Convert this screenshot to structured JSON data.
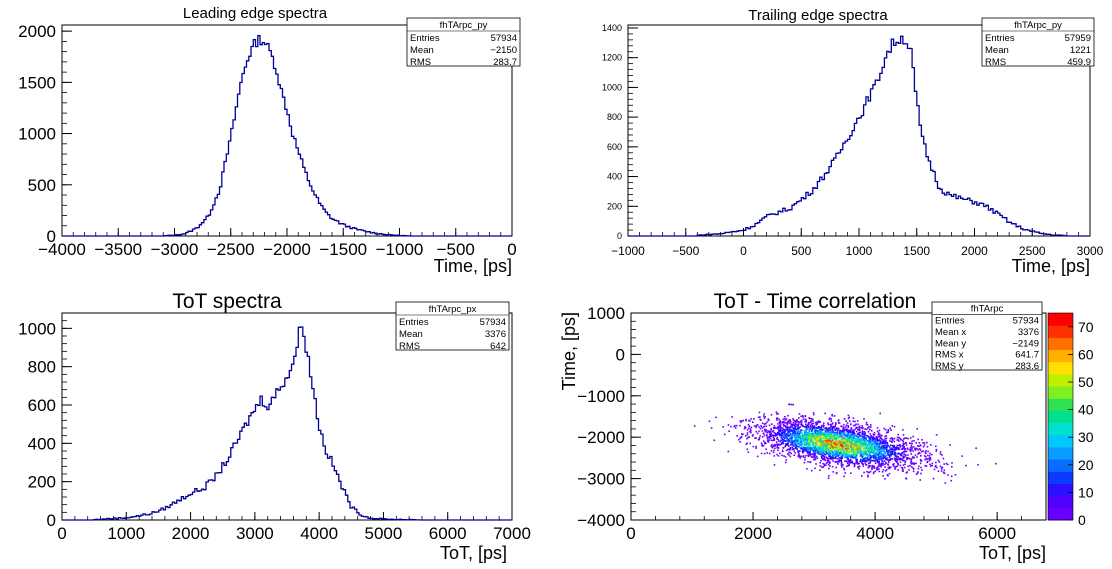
{
  "chart_data": [
    {
      "type": "histogram",
      "title": "Leading edge spectra",
      "xlabel": "Time, [ps]",
      "ylabel": "",
      "xlim": [
        -4000,
        0
      ],
      "ylim": [
        0,
        2060
      ],
      "xticks": [
        -4000,
        -3500,
        -3000,
        -2500,
        -2000,
        -1500,
        -1000,
        -500,
        0
      ],
      "yticks": [
        0,
        500,
        1000,
        1500,
        2000
      ],
      "color": "#000099",
      "series": [
        {
          "x": [
            -3100,
            -3000,
            -2900,
            -2800,
            -2700,
            -2600,
            -2500,
            -2450,
            -2400,
            -2350,
            -2300,
            -2250,
            -2200,
            -2150,
            -2100,
            -2050,
            -2000,
            -1950,
            -1900,
            -1850,
            -1800,
            -1750,
            -1700,
            -1650,
            -1600,
            -1500,
            -1400,
            -1300,
            -1200,
            -1100,
            -1000,
            -900
          ],
          "y": [
            2,
            8,
            25,
            80,
            190,
            450,
            960,
            1260,
            1550,
            1730,
            1860,
            1920,
            1900,
            1800,
            1650,
            1420,
            1230,
            1000,
            830,
            660,
            520,
            400,
            300,
            225,
            170,
            110,
            70,
            45,
            25,
            12,
            5,
            0
          ]
        }
      ],
      "stats": {
        "name": "fhTArpc_py",
        "rows": [
          [
            "Entries",
            "57934"
          ],
          [
            "Mean",
            "−2150"
          ],
          [
            "RMS",
            "283.7"
          ]
        ]
      }
    },
    {
      "type": "histogram",
      "title": "Trailing edge spectra",
      "xlabel": "Time, [ps]",
      "ylabel": "",
      "xlim": [
        -1000,
        3000
      ],
      "ylim": [
        0,
        1420
      ],
      "xticks": [
        -1000,
        -500,
        0,
        500,
        1000,
        1500,
        2000,
        2500,
        3000
      ],
      "yticks": [
        0,
        200,
        400,
        600,
        800,
        1000,
        1200,
        1400
      ],
      "color": "#000099",
      "series": [
        {
          "x": [
            -400,
            -200,
            0,
            100,
            200,
            300,
            400,
            500,
            600,
            700,
            800,
            900,
            1000,
            1050,
            1100,
            1150,
            1200,
            1250,
            1300,
            1350,
            1400,
            1450,
            1500,
            1550,
            1600,
            1650,
            1700,
            1800,
            1900,
            2000,
            2100,
            2200,
            2300,
            2400,
            2500,
            2600,
            2700,
            2800
          ],
          "y": [
            5,
            15,
            40,
            75,
            130,
            160,
            185,
            245,
            310,
            410,
            520,
            660,
            800,
            870,
            960,
            1020,
            1140,
            1240,
            1300,
            1330,
            1330,
            1240,
            900,
            650,
            520,
            420,
            320,
            270,
            250,
            230,
            200,
            150,
            95,
            55,
            30,
            15,
            6,
            2
          ]
        }
      ],
      "stats": {
        "name": "fhTArpc_py",
        "rows": [
          [
            "Entries",
            "57959"
          ],
          [
            "Mean",
            "1221"
          ],
          [
            "RMS",
            "459.9"
          ]
        ]
      }
    },
    {
      "type": "histogram",
      "title": "ToT spectra",
      "xlabel": "ToT, [ps]",
      "ylabel": "",
      "xlim": [
        0,
        7000
      ],
      "ylim": [
        0,
        1080
      ],
      "xticks": [
        0,
        1000,
        2000,
        3000,
        4000,
        5000,
        6000,
        7000
      ],
      "yticks": [
        0,
        200,
        400,
        600,
        800,
        1000
      ],
      "color": "#000099",
      "series": [
        {
          "x": [
            500,
            800,
            1000,
            1200,
            1400,
            1600,
            1800,
            2000,
            2200,
            2400,
            2600,
            2800,
            3000,
            3100,
            3200,
            3300,
            3400,
            3500,
            3600,
            3700,
            3750,
            3800,
            3900,
            4000,
            4100,
            4200,
            4300,
            4400,
            4500,
            4600,
            4700,
            4800,
            5000,
            5200,
            5400,
            5600
          ],
          "y": [
            2,
            8,
            12,
            22,
            35,
            60,
            100,
            140,
            165,
            230,
            330,
            460,
            580,
            630,
            600,
            640,
            700,
            750,
            820,
            990,
            1020,
            900,
            700,
            490,
            370,
            300,
            220,
            140,
            70,
            40,
            20,
            10,
            5,
            3,
            2,
            0
          ]
        }
      ],
      "stats": {
        "name": "fhTArpc_px",
        "rows": [
          [
            "Entries",
            "57934"
          ],
          [
            "Mean",
            "3376"
          ],
          [
            "RMS",
            "642"
          ]
        ]
      }
    },
    {
      "type": "heatmap",
      "title": "ToT - Time correlation",
      "xlabel": "ToT, [ps]",
      "ylabel": "Time, [ps]",
      "xlim": [
        0,
        6800
      ],
      "ylim": [
        -4000,
        1000
      ],
      "xticks": [
        0,
        2000,
        4000,
        6000
      ],
      "yticks": [
        -4000,
        -3000,
        -2000,
        -1000,
        0,
        1000
      ],
      "zlim": [
        0,
        75
      ],
      "zticks": [
        0,
        10,
        20,
        30,
        40,
        50,
        60,
        70
      ],
      "cluster": {
        "x_mean": 3376,
        "y_mean": -2149,
        "x_rms": 641.7,
        "y_rms": 283.6,
        "slope": -0.22
      },
      "stats": {
        "name": "fhTArpc",
        "rows": [
          [
            "Entries",
            "57934"
          ],
          [
            "Mean x",
            "3376"
          ],
          [
            "Mean y",
            "−2149"
          ],
          [
            "RMS x",
            "641.7"
          ],
          [
            "RMS y",
            "283.6"
          ]
        ]
      }
    }
  ]
}
